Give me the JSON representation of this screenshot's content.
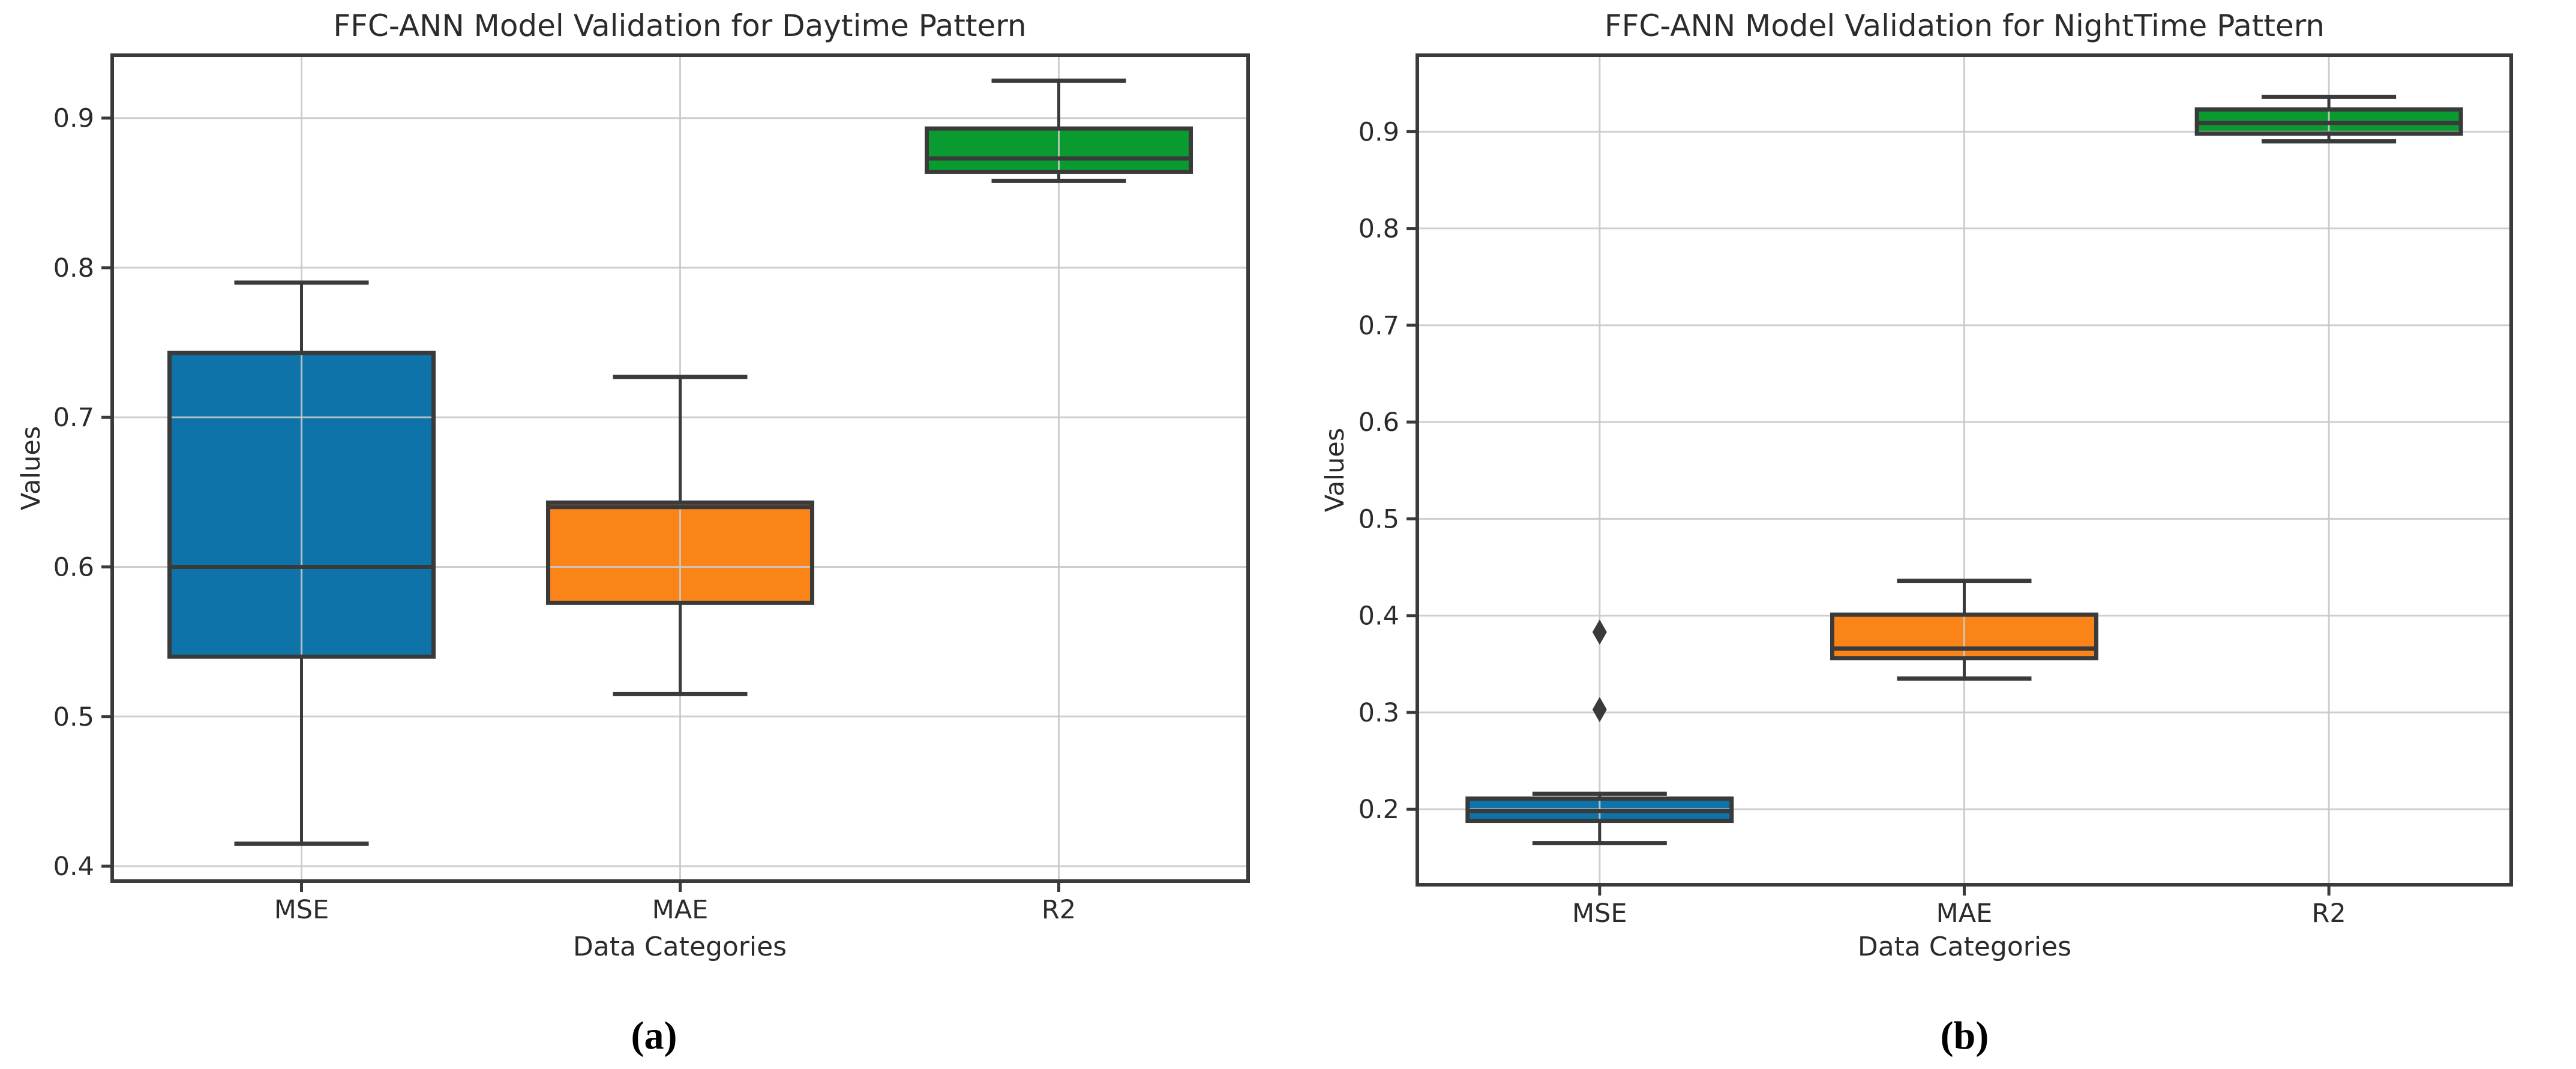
{
  "figure": {
    "background": "#ffffff"
  },
  "style": {
    "box_edge_color": "#3a3a3a",
    "median_color": "#3a3a3a",
    "whisker_color": "#3a3a3a",
    "spine_color": "#3a3a3a",
    "gridline_color": "#c9c9c9",
    "text_color": "#2b2b2b",
    "outlier_color": "#3a3a3a"
  },
  "chart_data": [
    {
      "type": "box",
      "title": "FFC-ANN Model Validation for Daytime Pattern",
      "xlabel": "Data Categories",
      "ylabel": "Values",
      "caption": "(a)",
      "grid": true,
      "legend": "none",
      "categories": [
        "MSE",
        "MAE",
        "R2"
      ],
      "yticks": [
        0.4,
        0.5,
        0.6,
        0.7,
        0.8,
        0.9
      ],
      "ylim": [
        0.39,
        0.942
      ],
      "outlier_marker": "diamond",
      "boxes": [
        {
          "category": "MSE",
          "color": "#0d73a8",
          "whislo": 0.415,
          "q1": 0.54,
          "med": 0.6,
          "q3": 0.743,
          "whishi": 0.79,
          "outliers": []
        },
        {
          "category": "MAE",
          "color": "#fb8418",
          "whislo": 0.515,
          "q1": 0.576,
          "med": 0.64,
          "q3": 0.643,
          "whishi": 0.727,
          "outliers": []
        },
        {
          "category": "R2",
          "color": "#0a9b30",
          "whislo": 0.858,
          "q1": 0.864,
          "med": 0.873,
          "q3": 0.893,
          "whishi": 0.925,
          "outliers": []
        }
      ]
    },
    {
      "type": "box",
      "title": "FFC-ANN Model Validation for NightTime Pattern",
      "xlabel": "Data Categories",
      "ylabel": "Values",
      "caption": "(b)",
      "grid": true,
      "legend": "none",
      "categories": [
        "MSE",
        "MAE",
        "R2"
      ],
      "yticks": [
        0.2,
        0.3,
        0.4,
        0.5,
        0.6,
        0.7,
        0.8,
        0.9
      ],
      "ylim": [
        0.122,
        0.979
      ],
      "outlier_marker": "diamond",
      "boxes": [
        {
          "category": "MSE",
          "color": "#0d73a8",
          "whislo": 0.165,
          "q1": 0.188,
          "med": 0.198,
          "q3": 0.211,
          "whishi": 0.216,
          "outliers": [
            0.303,
            0.383
          ]
        },
        {
          "category": "MAE",
          "color": "#fb8418",
          "whislo": 0.335,
          "q1": 0.356,
          "med": 0.366,
          "q3": 0.401,
          "whishi": 0.436,
          "outliers": []
        },
        {
          "category": "R2",
          "color": "#0a9b30",
          "whislo": 0.89,
          "q1": 0.898,
          "med": 0.909,
          "q3": 0.923,
          "whishi": 0.936,
          "outliers": []
        }
      ]
    }
  ]
}
